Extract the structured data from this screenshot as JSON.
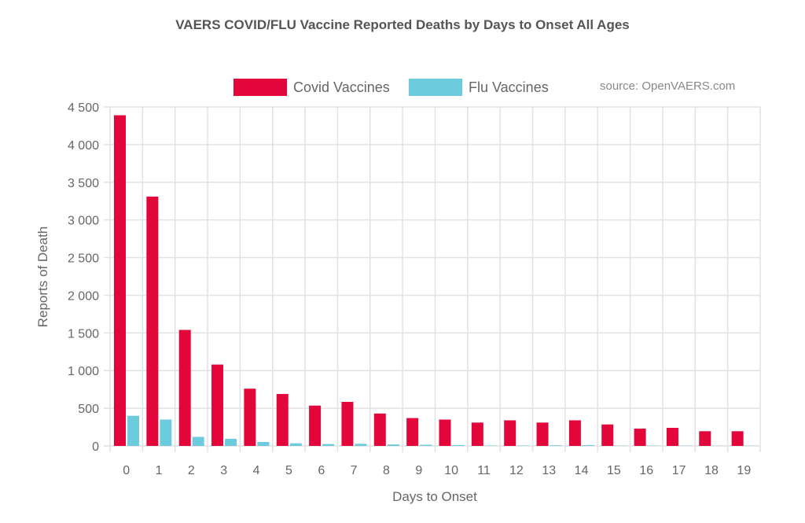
{
  "chart_data": {
    "type": "bar",
    "title": "VAERS COVID/FLU Vaccine Reported Deaths by Days to Onset All Ages",
    "source": "source: OpenVAERS.com",
    "xlabel": "Days to Onset",
    "ylabel": "Reports of Death",
    "ylim": [
      0,
      4500
    ],
    "yticks": [
      0,
      500,
      1000,
      1500,
      2000,
      2500,
      3000,
      3500,
      4000,
      4500
    ],
    "ytick_labels": [
      "0",
      "500",
      "1 000",
      "1 500",
      "2 000",
      "2 500",
      "3 000",
      "3 500",
      "4 000",
      "4 500"
    ],
    "grid": true,
    "legend_placement": "top-center",
    "categories": [
      "0",
      "1",
      "2",
      "3",
      "4",
      "5",
      "6",
      "7",
      "8",
      "9",
      "10",
      "11",
      "12",
      "13",
      "14",
      "15",
      "16",
      "17",
      "18",
      "19"
    ],
    "series": [
      {
        "name": "Covid Vaccines",
        "color": "#e2063b",
        "values": [
          4390,
          3310,
          1540,
          1080,
          760,
          690,
          535,
          585,
          430,
          370,
          350,
          310,
          340,
          310,
          340,
          285,
          230,
          240,
          195,
          195
        ]
      },
      {
        "name": "Flu Vaccines",
        "color": "#6ccbdd",
        "values": [
          400,
          350,
          120,
          95,
          52,
          35,
          25,
          28,
          20,
          15,
          12,
          5,
          5,
          8,
          10,
          3,
          4,
          3,
          2,
          2
        ]
      }
    ]
  }
}
